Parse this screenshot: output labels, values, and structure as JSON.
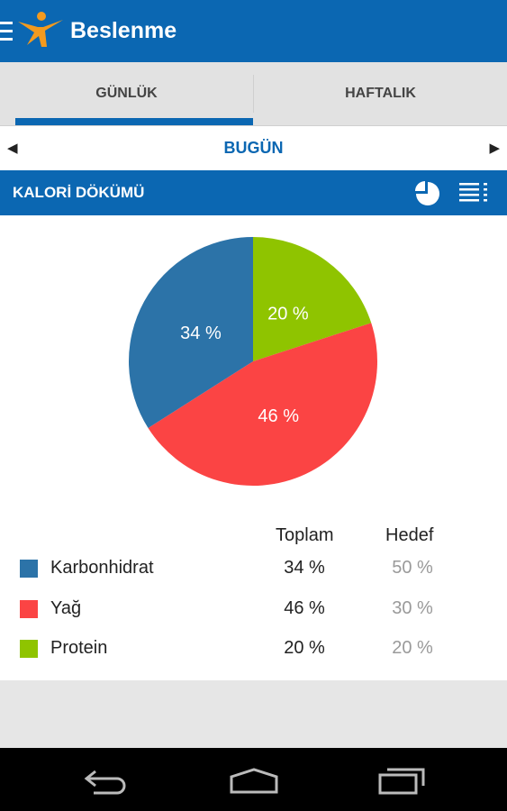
{
  "app": {
    "title": "Beslenme"
  },
  "tabs": [
    {
      "label": "GÜNLÜK",
      "active": true
    },
    {
      "label": "HAFTALIK",
      "active": false
    }
  ],
  "date_nav": {
    "label": "BUGÜN"
  },
  "section": {
    "title": "KALORİ DÖKÜMÜ",
    "icons": [
      "pie-chart-icon",
      "list-view-icon"
    ]
  },
  "colors": {
    "accent": "#0b67b2",
    "karbonhidrat": "#2c73a8",
    "yag": "#fb4444",
    "protein": "#8fc400"
  },
  "chart_data": {
    "type": "pie",
    "categories": [
      "Karbonhidrat",
      "Yağ",
      "Protein"
    ],
    "values": [
      34,
      46,
      20
    ],
    "labels": [
      "34 %",
      "46 %",
      "20 %"
    ],
    "colors": [
      "#2c73a8",
      "#fb4444",
      "#8fc400"
    ]
  },
  "table": {
    "headers": {
      "total": "Toplam",
      "goal": "Hedef"
    },
    "rows": [
      {
        "name": "Karbonhidrat",
        "total": "34 %",
        "goal": "50 %"
      },
      {
        "name": "Yağ",
        "total": "46 %",
        "goal": "30 %"
      },
      {
        "name": "Protein",
        "total": "20 %",
        "goal": "20 %"
      }
    ]
  },
  "system_nav": [
    "back-icon",
    "home-icon",
    "recent-apps-icon"
  ]
}
